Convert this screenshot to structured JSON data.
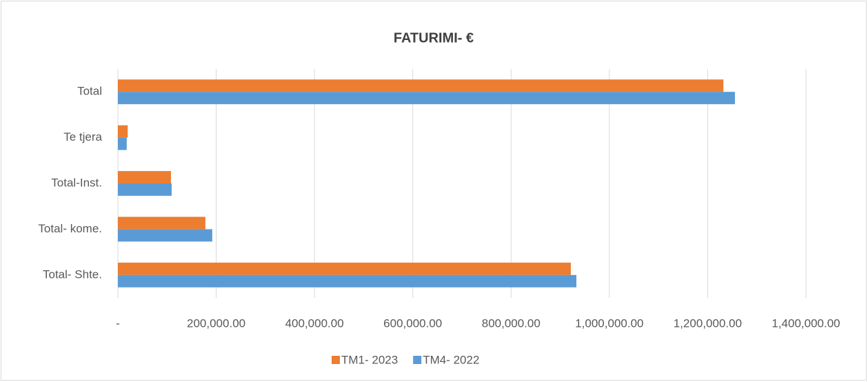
{
  "chart_data": {
    "type": "hbar",
    "title": "FATURIMI- €",
    "categories": [
      "Total- Shte.",
      "Total- kome.",
      "Total-Inst.",
      "Te tjera",
      "Total"
    ],
    "series": [
      {
        "name": "TM1- 2023",
        "color": "#ed7d31",
        "values": [
          921600,
          178000,
          108000,
          20000,
          1232000
        ]
      },
      {
        "name": "TM4- 2022",
        "color": "#5b9bd5",
        "values": [
          932900,
          192000,
          109400,
          18000,
          1255500
        ]
      }
    ],
    "xlim": [
      0,
      1400000
    ],
    "xticks": [
      {
        "value": 0,
        "label": "-"
      },
      {
        "value": 200000,
        "label": "200,000.00"
      },
      {
        "value": 400000,
        "label": "400,000.00"
      },
      {
        "value": 600000,
        "label": "600,000.00"
      },
      {
        "value": 800000,
        "label": "800,000.00"
      },
      {
        "value": 1000000,
        "label": "1,000,000.00"
      },
      {
        "value": 1200000,
        "label": "1,200,000.00"
      },
      {
        "value": 1400000,
        "label": "1,400,000.00"
      }
    ],
    "grid": true,
    "legend": "bottom"
  }
}
